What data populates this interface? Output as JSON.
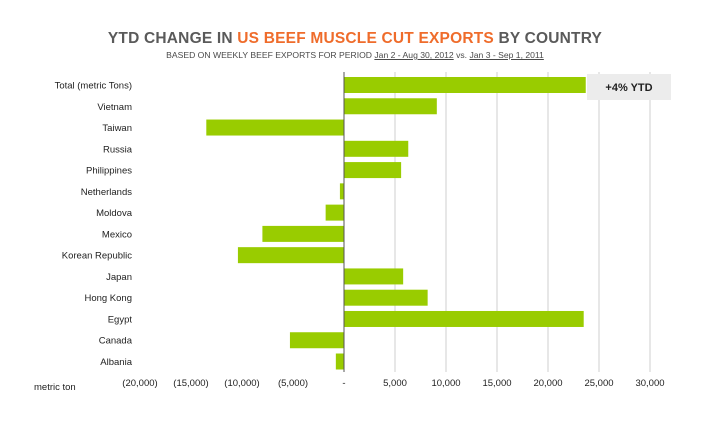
{
  "title": {
    "part1": "YTD CHANGE IN ",
    "part2": "US BEEF MUSCLE CUT EXPORTS",
    "part3": " BY COUNTRY"
  },
  "subtitle": {
    "prefix": "BASED ON WEEKLY BEEF EXPORTS FOR PERIOD ",
    "period1": "Jan 2 - Aug 30, 2012",
    "vs": " vs. ",
    "period2": "Jan 3 - Sep 1, 2011"
  },
  "colors": {
    "bar": "#99cc00",
    "title_dark": "#5a5a5a",
    "title_accent": "#ef6c2b",
    "grid": "#cfcfcf",
    "axis": "#555555",
    "callout_fill": "#ececec"
  },
  "callout": "+4% YTD",
  "unit_label": "metric ton",
  "chart_data": {
    "type": "bar",
    "orientation": "horizontal",
    "categories": [
      "Total (metric Tons)",
      "Vietnam",
      "Taiwan",
      "Russia",
      "Philippines",
      "Netherlands",
      "Moldova",
      "Mexico",
      "Korean Republic",
      "Japan",
      "Hong Kong",
      "Egypt",
      "Canada",
      "Albania"
    ],
    "values": [
      23700,
      9100,
      -13500,
      6300,
      5600,
      -400,
      -1800,
      -8000,
      -10400,
      5800,
      8200,
      23500,
      -5300,
      -800
    ],
    "xlim": [
      -20000,
      30000
    ],
    "x_ticks": [
      -20000,
      -15000,
      -10000,
      -5000,
      0,
      5000,
      10000,
      15000,
      20000,
      25000,
      30000
    ],
    "x_tick_labels": [
      "(20,000)",
      "(15,000)",
      "(10,000)",
      "(5,000)",
      "-",
      "5,000",
      "10,000",
      "15,000",
      "20,000",
      "25,000",
      "30,000"
    ],
    "xlabel": "metric ton",
    "grid": "vertical",
    "legend": "none"
  }
}
